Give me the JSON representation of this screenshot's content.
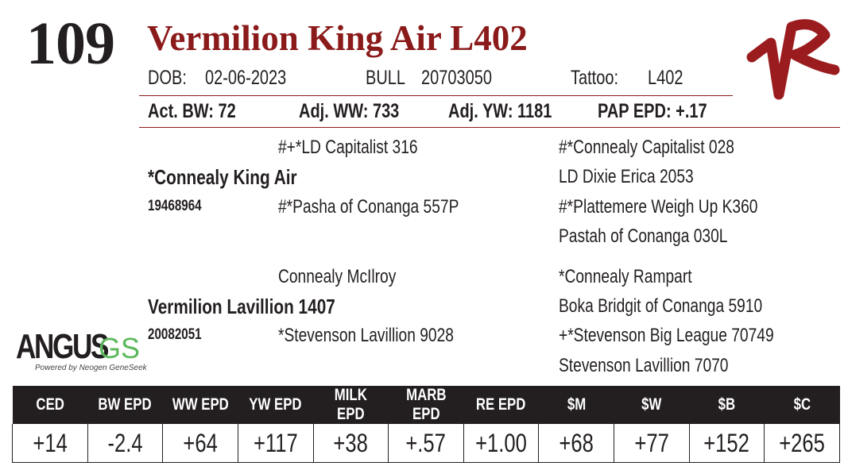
{
  "lot_number": "109",
  "name": "Vermilion King Air L402",
  "dob_label": "DOB:",
  "dob": "02-06-2023",
  "sex": "BULL",
  "registration": "20703050",
  "tattoo_label": "Tattoo:",
  "tattoo": "L402",
  "act_bw": "Act. BW: 72",
  "adj_ww": "Adj. WW: 733",
  "adj_yw": "Adj. YW: 1181",
  "pap_epd": "PAP EPD: +.17",
  "pedigree": {
    "sire": "*Connealy King Air",
    "sire_reg": "19468964",
    "sire_sire": "#+*LD Capitalist 316",
    "sire_dam": "#*Pasha of Conanga 557P",
    "sss": "#*Connealy Capitalist 028",
    "ssd": "LD Dixie Erica 2053",
    "sds": "#*Plattemere Weigh Up K360",
    "sdd": "Pastah of Conanga 030L",
    "dam": "Vermilion Lavillion 1407",
    "dam_reg": "20082051",
    "dam_sire": "Connealy McIlroy",
    "dam_dam": "*Stevenson Lavillion  9028",
    "dss": "*Connealy Rampart",
    "dsd": "Boka Bridgit of Conanga 5910",
    "dds": "+*Stevenson Big League 70749",
    "ddd": "Stevenson Lavillion 7070"
  },
  "logo": {
    "angus": "ANGUS",
    "gs": "GS",
    "powered": "Powered by Neogen GeneSeek"
  },
  "brand_mark": "VR",
  "colors": {
    "accent": "#8b1a1a",
    "gs_green": "#5cb85c",
    "header_bg": "#231f20"
  },
  "epds": {
    "headers": [
      "CED",
      "BW EPD",
      "WW EPD",
      "YW EPD",
      "MILK EPD",
      "MARB EPD",
      "RE EPD",
      "$M",
      "$W",
      "$B",
      "$C"
    ],
    "values": [
      "+14",
      "-2.4",
      "+64",
      "+117",
      "+38",
      "+.57",
      "+1.00",
      "+68",
      "+77",
      "+152",
      "+265"
    ]
  }
}
